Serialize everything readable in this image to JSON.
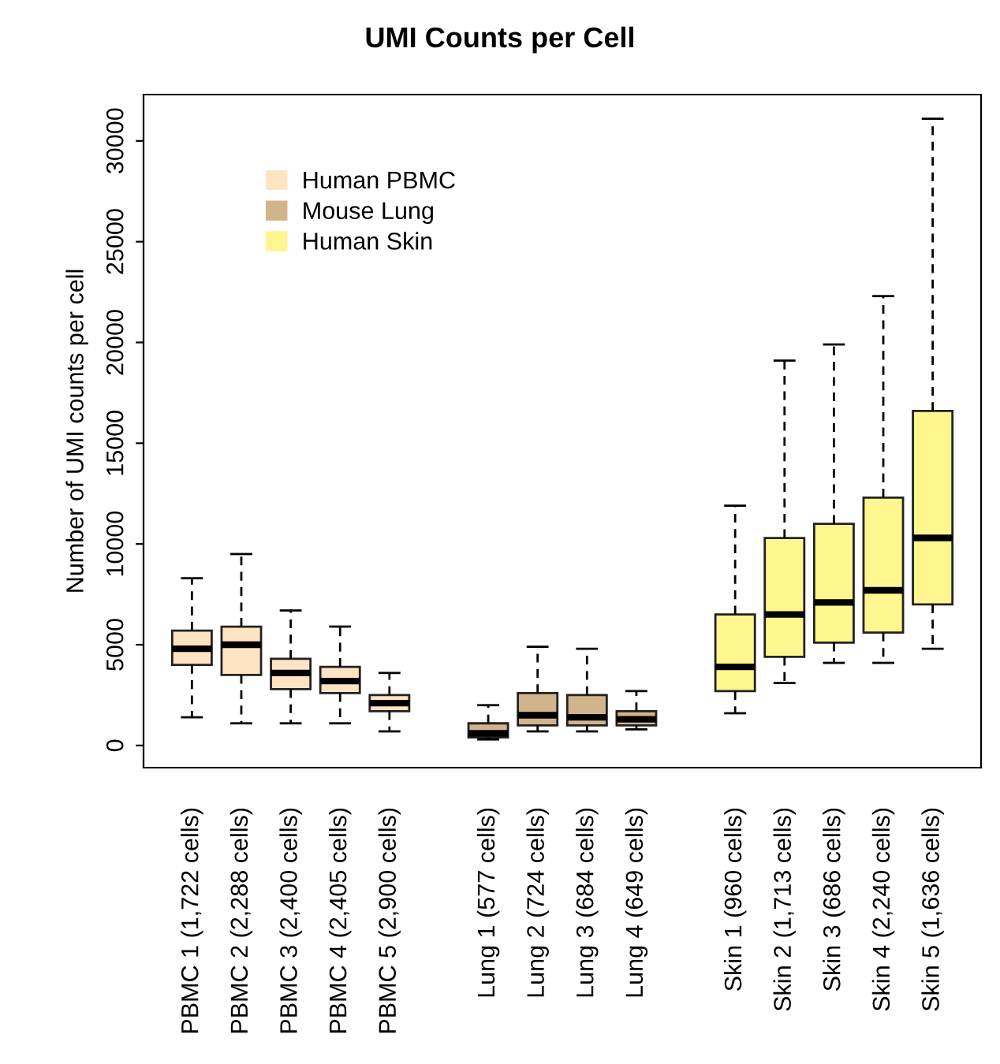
{
  "chart_data": {
    "type": "box",
    "title": "UMI Counts per Cell",
    "ylabel": "Number of UMI counts per cell",
    "categories": [
      "PBMC 1 (1,722 cells)",
      "PBMC 2 (2,288 cells)",
      "PBMC 3 (2,400 cells)",
      "PBMC 4 (2,405 cells)",
      "PBMC 5 (2,900 cells)",
      null,
      "Lung 1 (577 cells)",
      "Lung 2 (724 cells)",
      "Lung 3 (684 cells)",
      "Lung 4 (649 cells)",
      null,
      "Skin 1 (960 cells)",
      "Skin 2 (1,713 cells)",
      "Skin 3 (686 cells)",
      "Skin 4 (2,240 cells)",
      "Skin 5 (1,636 cells)"
    ],
    "series": [
      {
        "name": "Human PBMC",
        "color": "#ffe4c4",
        "boxes": [
          {
            "low": 1400,
            "q1": 4000,
            "median": 4800,
            "q3": 5700,
            "high": 8300
          },
          {
            "low": 1100,
            "q1": 3500,
            "median": 5000,
            "q3": 5900,
            "high": 9500
          },
          {
            "low": 1100,
            "q1": 2800,
            "median": 3600,
            "q3": 4300,
            "high": 6700
          },
          {
            "low": 1100,
            "q1": 2600,
            "median": 3200,
            "q3": 3900,
            "high": 5900
          },
          {
            "low": 700,
            "q1": 1700,
            "median": 2100,
            "q3": 2500,
            "high": 3600
          },
          null,
          null,
          null,
          null,
          null,
          null,
          null,
          null,
          null,
          null,
          null
        ]
      },
      {
        "name": "Mouse Lung",
        "color": "#d2b48c",
        "boxes": [
          null,
          null,
          null,
          null,
          null,
          null,
          {
            "low": 300,
            "q1": 400,
            "median": 600,
            "q3": 1100,
            "high": 2000
          },
          {
            "low": 700,
            "q1": 1000,
            "median": 1500,
            "q3": 2600,
            "high": 4900
          },
          {
            "low": 700,
            "q1": 1000,
            "median": 1400,
            "q3": 2500,
            "high": 4800
          },
          {
            "low": 800,
            "q1": 1000,
            "median": 1300,
            "q3": 1700,
            "high": 2700
          },
          null,
          null,
          null,
          null,
          null,
          null
        ]
      },
      {
        "name": "Human Skin",
        "color": "#fff68f",
        "boxes": [
          null,
          null,
          null,
          null,
          null,
          null,
          null,
          null,
          null,
          null,
          null,
          {
            "low": 1600,
            "q1": 2700,
            "median": 3900,
            "q3": 6500,
            "high": 11900
          },
          {
            "low": 3100,
            "q1": 4400,
            "median": 6500,
            "q3": 10300,
            "high": 19100
          },
          {
            "low": 4100,
            "q1": 5100,
            "median": 7100,
            "q3": 11000,
            "high": 19900
          },
          {
            "low": 4100,
            "q1": 5600,
            "median": 7700,
            "q3": 12300,
            "high": 22300
          },
          {
            "low": 4800,
            "q1": 7000,
            "median": 10300,
            "q3": 16600,
            "high": 31100
          }
        ]
      }
    ],
    "ylim": [
      -1100,
      32300
    ],
    "yticks": [
      0,
      5000,
      10000,
      15000,
      20000,
      25000,
      30000
    ],
    "grid": false,
    "legend": "top left"
  }
}
